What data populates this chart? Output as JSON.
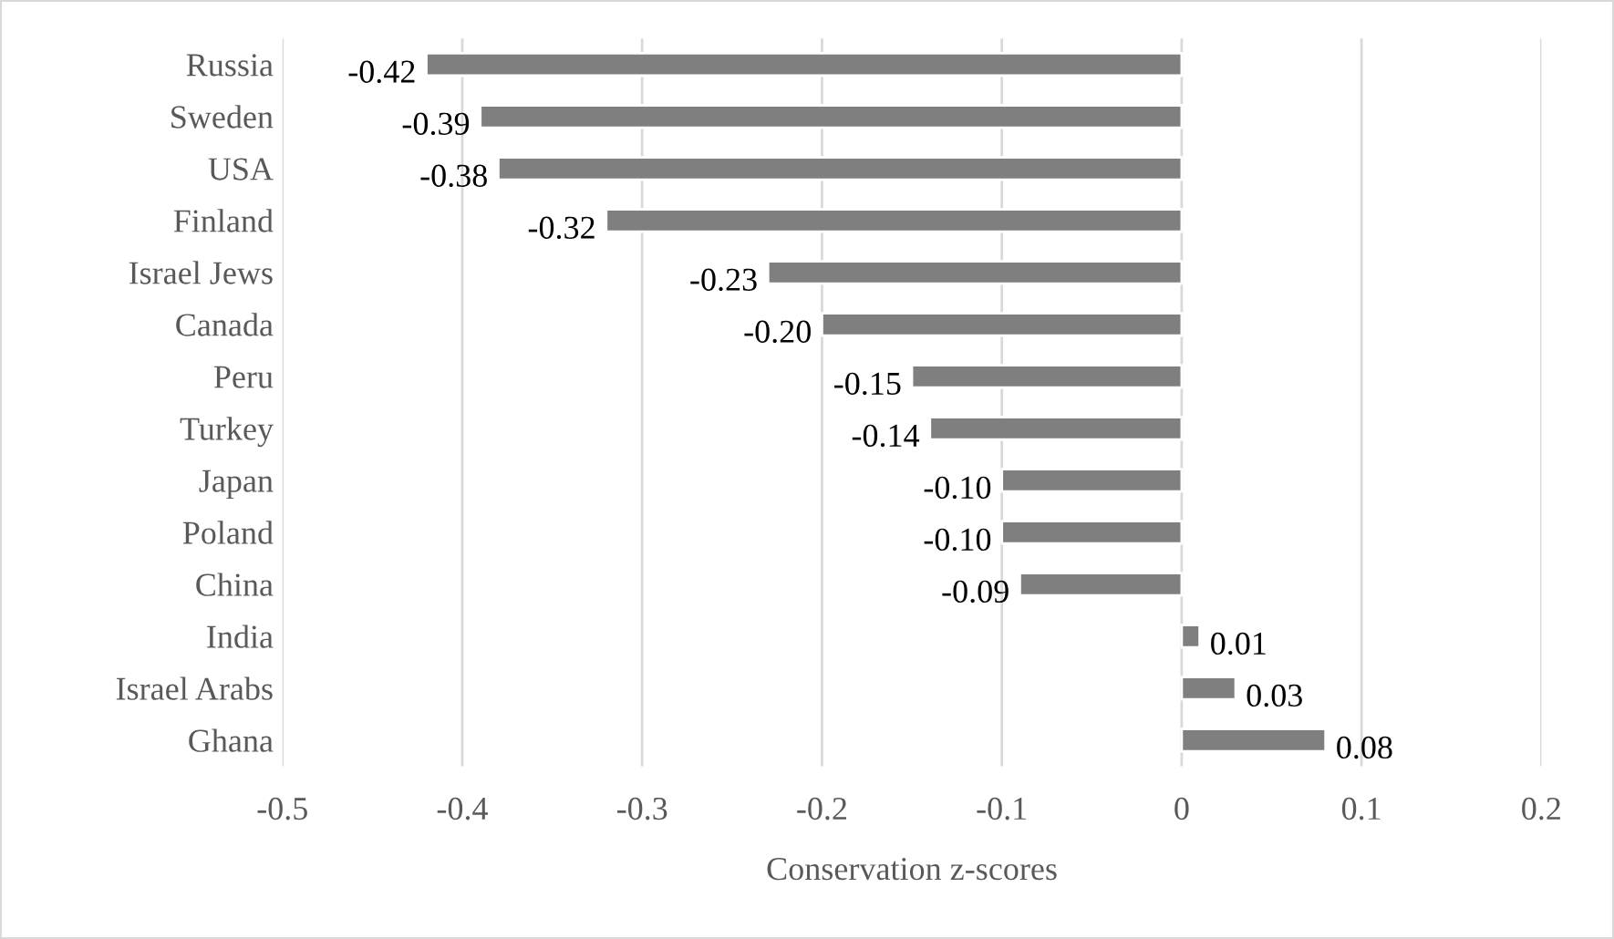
{
  "chart_data": {
    "type": "bar",
    "orientation": "horizontal",
    "xlabel": "Conservation z-scores",
    "categories": [
      "Russia",
      "Sweden",
      "USA",
      "Finland",
      "Israel Jews",
      "Canada",
      "Peru",
      "Turkey",
      "Japan",
      "Poland",
      "China",
      "India",
      "Israel Arabs",
      "Ghana"
    ],
    "values": [
      -0.42,
      -0.39,
      -0.38,
      -0.32,
      -0.23,
      -0.2,
      -0.15,
      -0.14,
      -0.1,
      -0.1,
      -0.09,
      0.01,
      0.03,
      0.08
    ],
    "value_labels": [
      "-0.42",
      "-0.39",
      "-0.38",
      "-0.32",
      "-0.23",
      "-0.20",
      "-0.15",
      "-0.14",
      "-0.10",
      "-0.10",
      "-0.09",
      "0.01",
      "0.03",
      "0.08"
    ],
    "color": "#7f7f7f",
    "xlim": [
      -0.5,
      0.2
    ],
    "xticks": [
      -0.5,
      -0.4,
      -0.3,
      -0.2,
      -0.1,
      0,
      0.1,
      0.2
    ],
    "grid": "x",
    "legend": false
  }
}
